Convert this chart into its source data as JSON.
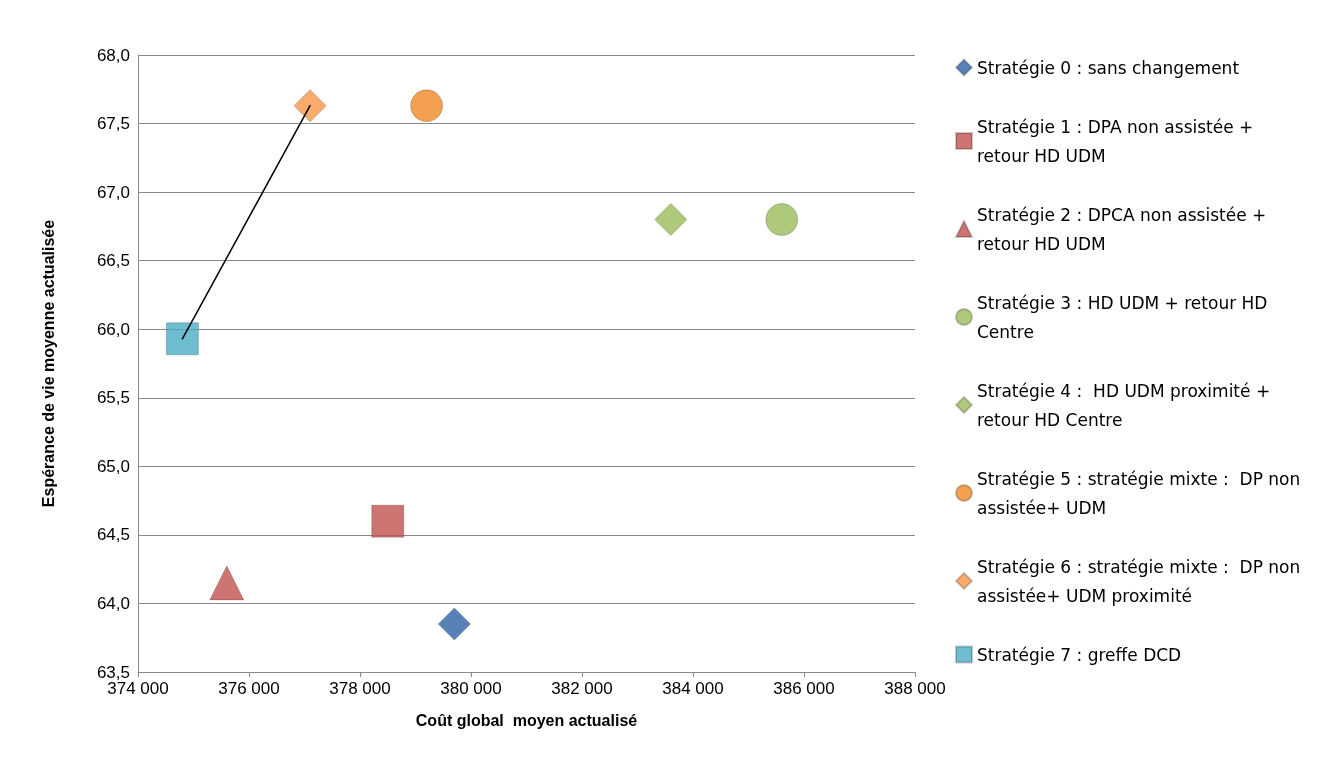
{
  "chart_data": {
    "type": "scatter",
    "xlabel": "Coût global  moyen actualisé",
    "ylabel": "Espérance de vie moyenne actualisée",
    "xlim": [
      374000,
      388000
    ],
    "xticks": [
      {
        "value": 374000,
        "label": "374 000"
      },
      {
        "value": 376000,
        "label": "376 000"
      },
      {
        "value": 378000,
        "label": "378 000"
      },
      {
        "value": 380000,
        "label": "380 000"
      },
      {
        "value": 382000,
        "label": "382 000"
      },
      {
        "value": 384000,
        "label": "384 000"
      },
      {
        "value": 386000,
        "label": "386 000"
      },
      {
        "value": 388000,
        "label": "388 000"
      }
    ],
    "ylim": [
      63.5,
      68.0
    ],
    "yticks": [
      {
        "value": 63.5,
        "label": "63,5"
      },
      {
        "value": 64.0,
        "label": "64,0"
      },
      {
        "value": 64.5,
        "label": "64,5"
      },
      {
        "value": 65.0,
        "label": "65,0"
      },
      {
        "value": 65.5,
        "label": "65,5"
      },
      {
        "value": 66.0,
        "label": "66,0"
      },
      {
        "value": 66.5,
        "label": "66,5"
      },
      {
        "value": 67.0,
        "label": "67,0"
      },
      {
        "value": 67.5,
        "label": "67,5"
      },
      {
        "value": 68.0,
        "label": "68,0"
      }
    ],
    "grid": "y",
    "legend": "right",
    "series": [
      {
        "name": "Stratégie 0 : sans changement",
        "color": "#2e62a8",
        "marker": "diamond",
        "x": [
          379700
        ],
        "values": [
          63.85
        ]
      },
      {
        "name": "Stratégie 1 : DPA non assistée + retour HD UDM",
        "color": "#c0504d",
        "marker": "square",
        "x": [
          378500
        ],
        "values": [
          64.6
        ]
      },
      {
        "name": "Stratégie 2 : DPCA non assistée + retour HD UDM",
        "color": "#c0504d",
        "marker": "triangle",
        "x": [
          375600
        ],
        "values": [
          64.15
        ]
      },
      {
        "name": "Stratégie 3 : HD UDM + retour HD Centre",
        "color": "#9bbb59",
        "marker": "circle",
        "x": [
          385600
        ],
        "values": [
          66.8
        ]
      },
      {
        "name": "Stratégie 4 :  HD UDM proximité + retour HD Centre",
        "color": "#9bbb59",
        "marker": "diamond",
        "x": [
          383600
        ],
        "values": [
          66.8
        ]
      },
      {
        "name": "Stratégie 5 : stratégie mixte :  DP non assistée+ UDM",
        "color": "#f08a24",
        "marker": "circle",
        "x": [
          379200
        ],
        "values": [
          67.63
        ]
      },
      {
        "name": "Stratégie 6 : stratégie mixte :  DP non assistée+ UDM proximité",
        "color": "#f79646",
        "marker": "diamond",
        "x": [
          377100
        ],
        "values": [
          67.63
        ]
      },
      {
        "name": "Stratégie 7 : greffe DCD",
        "color": "#4bacc6",
        "marker": "square",
        "x": [
          374800
        ],
        "values": [
          65.93
        ]
      },
      {
        "type": "line",
        "color": "#000000",
        "marker": "none",
        "x": [
          374800,
          377100
        ],
        "values": [
          65.93,
          67.63
        ]
      }
    ]
  }
}
